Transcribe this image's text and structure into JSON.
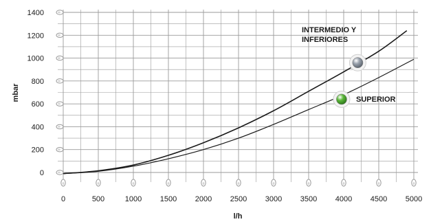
{
  "chart_data": {
    "type": "line",
    "xlabel": "l/h",
    "ylabel": "mbar",
    "xlim": [
      0,
      5000
    ],
    "ylim": [
      0,
      1400
    ],
    "x_ticks": [
      0,
      500,
      1000,
      1500,
      2000,
      2500,
      3000,
      3500,
      4000,
      4500,
      5000
    ],
    "y_ticks": [
      0,
      200,
      400,
      600,
      800,
      1000,
      1200,
      1400
    ],
    "grid": true,
    "series": [
      {
        "name": "INTERMEDIO Y INFERIORES",
        "x": [
          0,
          500,
          1000,
          1500,
          2000,
          2500,
          3000,
          3500,
          4000,
          4500,
          4900
        ],
        "y": [
          0,
          15,
          65,
          150,
          260,
          390,
          540,
          710,
          880,
          1060,
          1240
        ],
        "marker_x": 4200,
        "marker_y": 960,
        "marker_color": "#9aa2ad"
      },
      {
        "name": "SUPERIOR",
        "x": [
          0,
          500,
          1000,
          1500,
          2000,
          2500,
          3000,
          3500,
          4000,
          4500,
          5000
        ],
        "y": [
          0,
          10,
          55,
          120,
          200,
          300,
          420,
          550,
          680,
          830,
          990
        ],
        "marker_x": 3970,
        "marker_y": 640,
        "marker_color": "#5cb83a"
      }
    ],
    "annotations": [
      {
        "text": "INTERMEDIO Y",
        "series": 0,
        "line": 1
      },
      {
        "text": "INFERIORES",
        "series": 0,
        "line": 2
      },
      {
        "text": "SUPERIOR",
        "series": 1,
        "line": 1
      }
    ]
  },
  "colors": {
    "grid": "#9a9a9a",
    "curve": "#1a1a1a",
    "background": "#ffffff"
  }
}
